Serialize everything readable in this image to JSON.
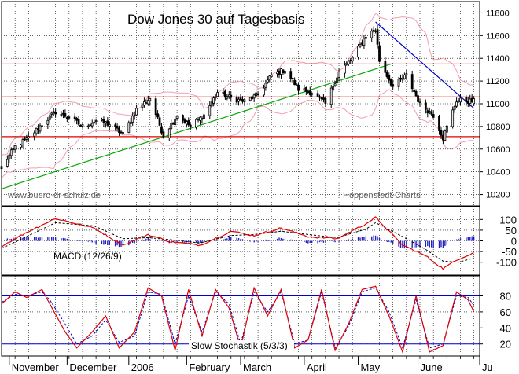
{
  "chart_data": [
    {
      "type": "candlestick",
      "title": "Dow Jones 30 auf Tagesbasis",
      "watermark_left": "www.buero-dr-schulz.de",
      "watermark_right": "Hoppenstedt-Charts",
      "ylim": [
        10100,
        11900
      ],
      "yticks": [
        "11800",
        "11600",
        "11400",
        "11200",
        "11000",
        "10800",
        "10600",
        "10400",
        "10200"
      ],
      "horizontal_levels": [
        11350,
        11060,
        10710
      ],
      "support_line": {
        "from": [
          "2005-10-28",
          10250
        ],
        "to": [
          "2006-05-18",
          11350
        ]
      },
      "resistance_line": {
        "from": [
          "2006-05-10",
          11720
        ],
        "to": [
          "2006-06-30",
          10960
        ]
      },
      "anchors": {
        "dates": [
          "2005-10-28",
          "2005-11-04",
          "2005-11-11",
          "2005-11-18",
          "2005-11-25",
          "2005-12-02",
          "2005-12-09",
          "2005-12-16",
          "2005-12-23",
          "2005-12-30",
          "2006-01-06",
          "2006-01-13",
          "2006-01-20",
          "2006-01-27",
          "2006-02-03",
          "2006-02-10",
          "2006-02-17",
          "2006-02-24",
          "2006-03-03",
          "2006-03-10",
          "2006-03-17",
          "2006-03-24",
          "2006-03-31",
          "2006-04-07",
          "2006-04-14",
          "2006-04-21",
          "2006-04-28",
          "2006-05-05",
          "2006-05-10",
          "2006-05-12",
          "2006-05-19",
          "2006-05-26",
          "2006-06-02",
          "2006-06-09",
          "2006-06-14",
          "2006-06-21",
          "2006-06-30"
        ],
        "close": [
          10440,
          10620,
          10700,
          10820,
          10930,
          10880,
          10800,
          10850,
          10820,
          10730,
          10950,
          11050,
          10720,
          10900,
          10800,
          10900,
          11100,
          11050,
          11020,
          11080,
          11250,
          11300,
          11130,
          11100,
          11000,
          11280,
          11400,
          11600,
          11650,
          11380,
          11150,
          11250,
          11000,
          10900,
          10700,
          11030,
          11020
        ]
      },
      "legend": []
    },
    {
      "type": "line",
      "label": "MACD (12/26/9)",
      "ylim": [
        -160,
        160
      ],
      "yticks": [
        "100",
        "50",
        "0",
        "-50",
        "-100"
      ],
      "anchors": {
        "dates": [
          "2005-10-28",
          "2005-11-10",
          "2005-11-25",
          "2005-12-15",
          "2005-12-30",
          "2006-01-12",
          "2006-01-24",
          "2006-02-08",
          "2006-02-24",
          "2006-03-08",
          "2006-03-22",
          "2006-04-05",
          "2006-04-20",
          "2006-05-05",
          "2006-05-10",
          "2006-05-24",
          "2006-06-05",
          "2006-06-14",
          "2006-06-22",
          "2006-06-30"
        ],
        "macd": [
          -25,
          40,
          105,
          60,
          -20,
          30,
          -5,
          -20,
          45,
          25,
          60,
          20,
          10,
          80,
          110,
          -20,
          -70,
          -130,
          -85,
          -55
        ],
        "signal": [
          -35,
          20,
          85,
          70,
          10,
          15,
          5,
          -10,
          25,
          30,
          45,
          30,
          15,
          55,
          85,
          20,
          -40,
          -95,
          -100,
          -80
        ]
      }
    },
    {
      "type": "line",
      "label": "Slow Stochastik (5/3/3)",
      "ylim": [
        5,
        105
      ],
      "yticks": [
        "80",
        "60",
        "40",
        "20"
      ],
      "levels": [
        80,
        20
      ],
      "anchors": {
        "dates": [
          "2005-10-28",
          "2005-11-04",
          "2005-11-10",
          "2005-11-18",
          "2005-11-22",
          "2005-11-30",
          "2005-12-06",
          "2005-12-14",
          "2005-12-21",
          "2005-12-28",
          "2006-01-05",
          "2006-01-12",
          "2006-01-19",
          "2006-01-26",
          "2006-02-02",
          "2006-02-09",
          "2006-02-16",
          "2006-02-23",
          "2006-03-01",
          "2006-03-08",
          "2006-03-15",
          "2006-03-22",
          "2006-03-29",
          "2006-04-05",
          "2006-04-12",
          "2006-04-19",
          "2006-04-26",
          "2006-05-03",
          "2006-05-10",
          "2006-05-17",
          "2006-05-24",
          "2006-05-31",
          "2006-06-07",
          "2006-06-14",
          "2006-06-21",
          "2006-06-27",
          "2006-06-30"
        ],
        "k": [
          70,
          85,
          78,
          88,
          70,
          35,
          15,
          35,
          55,
          15,
          35,
          90,
          80,
          12,
          88,
          30,
          88,
          65,
          15,
          90,
          55,
          88,
          15,
          25,
          88,
          12,
          45,
          88,
          92,
          55,
          10,
          80,
          10,
          18,
          85,
          75,
          60
        ],
        "d": [
          72,
          82,
          80,
          85,
          75,
          45,
          20,
          30,
          50,
          22,
          30,
          85,
          82,
          20,
          80,
          35,
          85,
          70,
          20,
          85,
          60,
          85,
          20,
          25,
          85,
          15,
          42,
          85,
          90,
          60,
          15,
          75,
          15,
          20,
          80,
          78,
          68
        ]
      }
    }
  ],
  "x_axis": {
    "labels": [
      {
        "text": "November",
        "date": "2005-11-01"
      },
      {
        "text": "December",
        "date": "2005-12-01"
      },
      {
        "text": "2006",
        "date": "2006-01-02"
      },
      {
        "text": "February",
        "date": "2006-02-01"
      },
      {
        "text": "March",
        "date": "2006-03-01"
      },
      {
        "text": "April",
        "date": "2006-04-03"
      },
      {
        "text": "May",
        "date": "2006-05-01"
      },
      {
        "text": "June",
        "date": "2006-06-01"
      },
      {
        "text": "Ju",
        "date": "2006-07-03"
      }
    ]
  },
  "colors": {
    "background": "#ffffff",
    "frame": "#000000",
    "grid": "#000000",
    "candles": "#000000",
    "bollinger": "#f0a0b0",
    "support": "#00aa00",
    "resistance": "#0000cc",
    "levels": "#dd0000",
    "macd": "#dd0000",
    "signal": "#000000",
    "histogram": "#2020c0",
    "stoch_k": "#dd0000",
    "stoch_d": "#0000cc",
    "stoch_levels": "#0000cc"
  }
}
